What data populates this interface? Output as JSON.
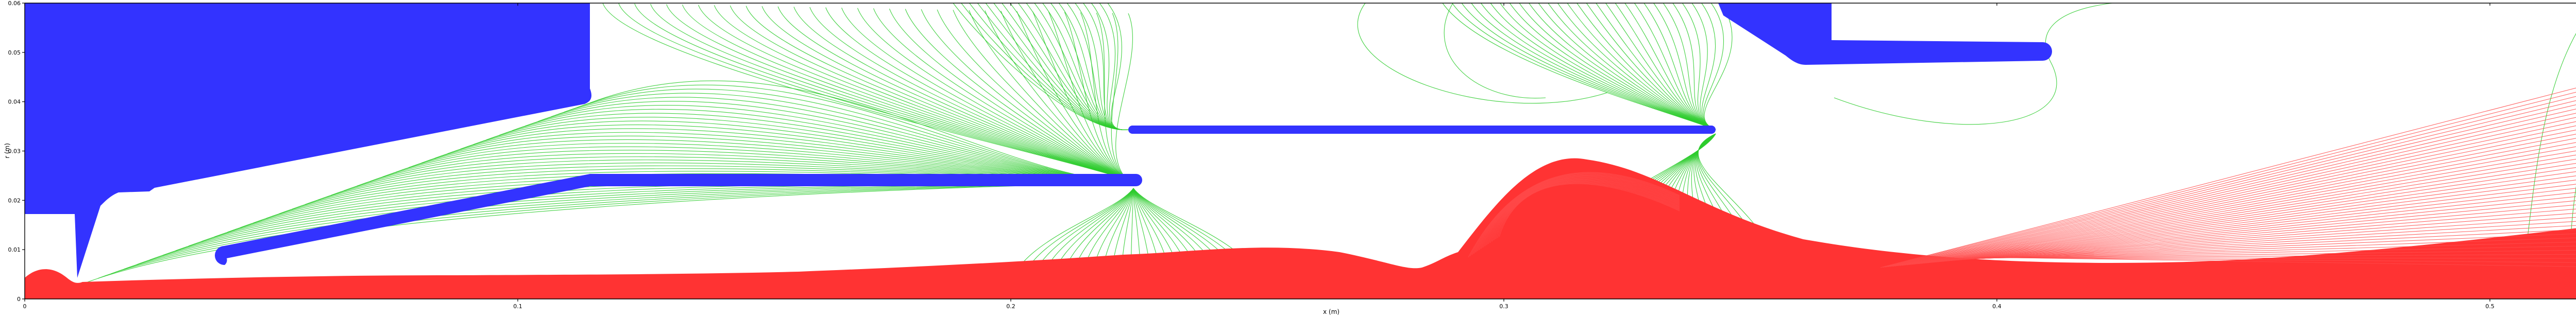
{
  "chart_data": {
    "type": "diagram",
    "title": "",
    "xlabel": "x (m)",
    "ylabel": "r (m)",
    "xlim": [
      0.0,
      0.53
    ],
    "ylim": [
      0.0,
      0.06
    ],
    "grid": false,
    "x_ticks": [
      {
        "value": 0.0,
        "label": "0"
      },
      {
        "value": 0.1,
        "label": "0.1"
      },
      {
        "value": 0.2,
        "label": "0.2"
      },
      {
        "value": 0.3,
        "label": "0.3"
      },
      {
        "value": 0.4,
        "label": "0.4"
      },
      {
        "value": 0.5,
        "label": "0.5"
      }
    ],
    "y_ticks": [
      {
        "value": 0.0,
        "label": "0"
      },
      {
        "value": 0.01,
        "label": "0.01"
      },
      {
        "value": 0.02,
        "label": "0.02"
      },
      {
        "value": 0.03,
        "label": "0.03"
      },
      {
        "value": 0.04,
        "label": "0.04"
      },
      {
        "value": 0.05,
        "label": "0.05"
      },
      {
        "value": 0.06,
        "label": "0.06"
      }
    ],
    "colors": {
      "electrode": "#3333ff",
      "target": "#ff3333",
      "equipotential": "#2ecc2e",
      "trajectory": "#ff4a4a"
    },
    "layers": [
      "electrodes",
      "target",
      "equipotential-lines",
      "particle-trajectories"
    ]
  }
}
